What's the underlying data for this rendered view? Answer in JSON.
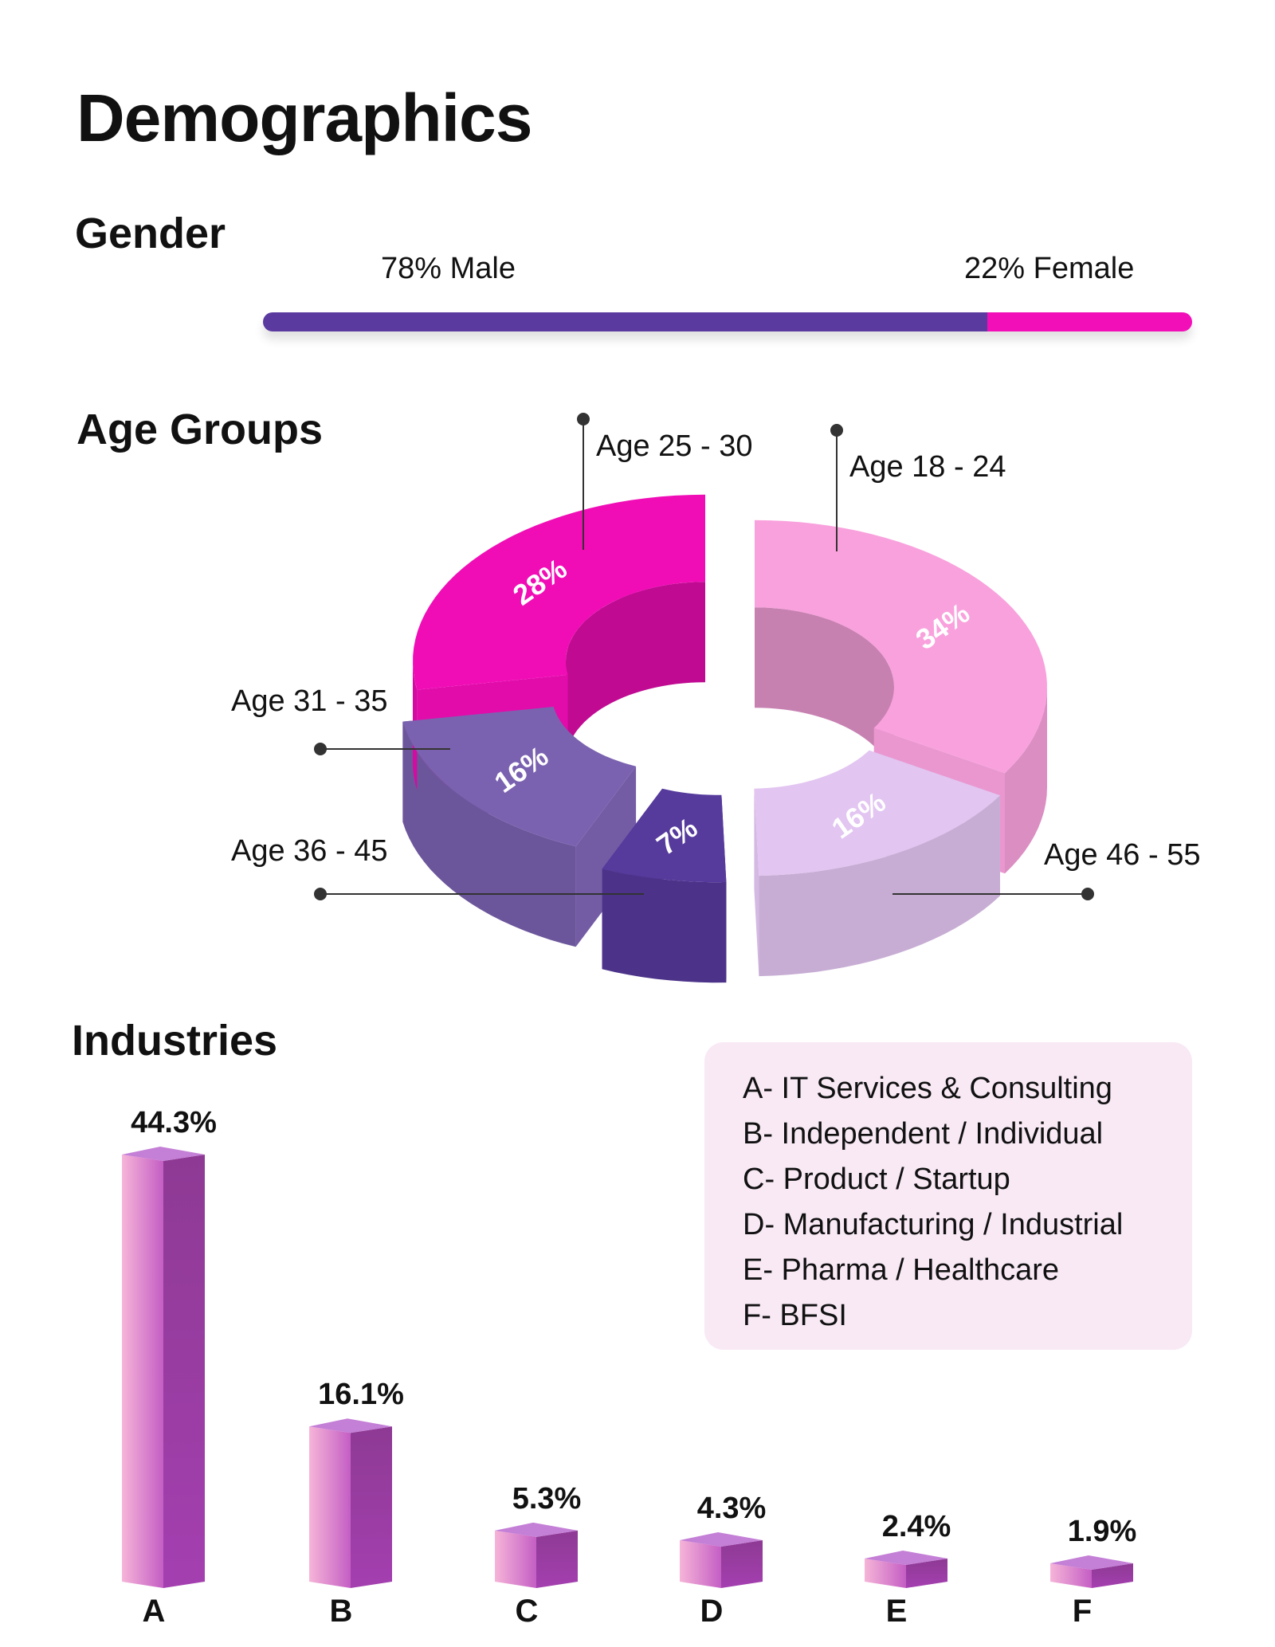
{
  "title": "Demographics",
  "gender": {
    "title": "Gender",
    "male_label": "78% Male",
    "female_label": "22% Female",
    "male_share": 78,
    "female_share": 22,
    "colors": {
      "male": "#5b3aa0",
      "female": "#f20fb8"
    }
  },
  "age_groups": {
    "title": "Age Groups"
  },
  "industries": {
    "title": "Industries",
    "legend": [
      "A- IT Services & Consulting",
      "B- Independent / Individual",
      "C- Product / Startup",
      "D- Manufacturing / Industrial",
      "E- Pharma / Healthcare",
      "F- BFSI"
    ]
  },
  "chart_data": [
    {
      "type": "pie",
      "title": "Age Groups",
      "categories": [
        "Age 18 - 24",
        "Age 46 - 55",
        "Age 36 - 45",
        "Age 31 - 35",
        "Age 25 - 30"
      ],
      "values": [
        34,
        16,
        7,
        16,
        28
      ],
      "value_labels": [
        "34%",
        "16%",
        "7%",
        "16%",
        "28%"
      ],
      "colors": [
        "#f9a1dd",
        "#e2c5f1",
        "#563a9c",
        "#7b62b0",
        "#f00db6"
      ]
    },
    {
      "type": "bar",
      "title": "Industries",
      "categories": [
        "A",
        "B",
        "C",
        "D",
        "E",
        "F"
      ],
      "values": [
        44.3,
        16.1,
        5.3,
        4.3,
        2.4,
        1.9
      ],
      "value_labels": [
        "44.3%",
        "16.1%",
        "5.3%",
        "4.3%",
        "2.4%",
        "1.9%"
      ],
      "ylim": [
        0,
        44.3
      ]
    }
  ]
}
